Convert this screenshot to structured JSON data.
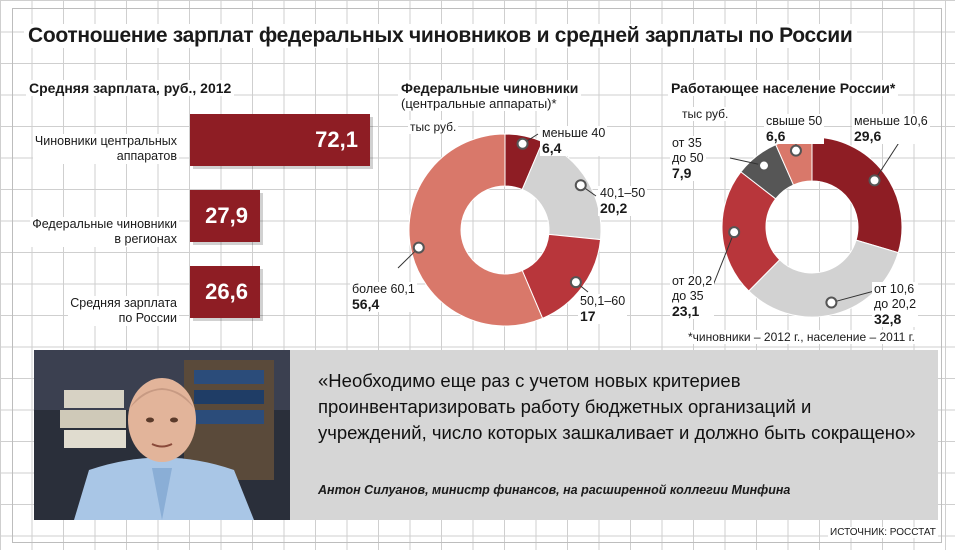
{
  "title": "Соотношение зарплат федеральных чиновников и средней зарплаты по России",
  "bar_section": {
    "title": "Средняя зарплата, руб., 2012",
    "bars": [
      {
        "label_line1": "Чиновники центральных",
        "label_line2": "аппаратов",
        "value_text": "72,1"
      },
      {
        "label_line1": "Федеральные чиновники",
        "label_line2": "в регионах",
        "value_text": "27,9"
      },
      {
        "label_line1": "Средняя зарплата",
        "label_line2": "по России",
        "value_text": "26,6"
      }
    ]
  },
  "donut1": {
    "title": "Федеральные чиновники",
    "subtitle": "(центральные аппараты)*",
    "unit": "тыс руб.",
    "slices": [
      {
        "label": "меньше 40",
        "value_text": "6,4"
      },
      {
        "label": "40,1–50",
        "value_text": "20,2"
      },
      {
        "label": "50,1–60",
        "value_text": "17"
      },
      {
        "label": "более 60,1",
        "value_text": "56,4"
      }
    ]
  },
  "donut2": {
    "title": "Работающее население России*",
    "unit": "тыс руб.",
    "slices": [
      {
        "label": "меньше 10,6",
        "value_text": "29,6"
      },
      {
        "label_line1": "от 10,6",
        "label_line2": "до 20,2",
        "value_text": "32,8"
      },
      {
        "label_line1": "от 20,2",
        "label_line2": "до 35",
        "value_text": "23,1"
      },
      {
        "label_line1": "от 35",
        "label_line2": "до 50",
        "value_text": "7,9"
      },
      {
        "label": "свыше 50",
        "value_text": "6,6"
      }
    ]
  },
  "footnote": "*чиновники – 2012 г., население – 2011 г.",
  "quote": {
    "text": "«Необходимо еще раз с учетом новых критериев проинвентаризировать работу бюджетных организаций и учреждений, число которых зашкаливает и должно быть сокращено»",
    "author": "Антон Силуанов, министр финансов, на расширенной коллегии Минфина"
  },
  "source": "ИСТОЧНИК: РОССТАТ",
  "colors": {
    "dark_red": "#8e1d24",
    "red": "#b8363b",
    "salmon": "#d9786a",
    "light_gray": "#d2d2d2",
    "dark_gray": "#565656"
  },
  "chart_data": [
    {
      "type": "bar",
      "title": "Средняя зарплата, руб., 2012",
      "categories": [
        "Чиновники центральных аппаратов",
        "Федеральные чиновники в регионах",
        "Средняя зарплата по России"
      ],
      "values": [
        72.1,
        27.9,
        26.6
      ],
      "orientation": "horizontal",
      "grid": true
    },
    {
      "type": "pie",
      "title": "Федеральные чиновники (центральные аппараты)*",
      "unit": "тыс руб.",
      "categories": [
        "меньше 40",
        "40,1–50",
        "50,1–60",
        "более 60,1"
      ],
      "values": [
        6.4,
        20.2,
        17,
        56.4
      ],
      "colors": [
        "#8e1d24",
        "#d2d2d2",
        "#b8363b",
        "#d9786a"
      ],
      "donut": true
    },
    {
      "type": "pie",
      "title": "Работающее население России*",
      "unit": "тыс руб.",
      "categories": [
        "меньше 10,6",
        "от 10,6 до 20,2",
        "от 20,2 до 35",
        "от 35 до 50",
        "свыше 50"
      ],
      "values": [
        29.6,
        32.8,
        23.1,
        7.9,
        6.6
      ],
      "colors": [
        "#8e1d24",
        "#d2d2d2",
        "#b8363b",
        "#565656",
        "#d9786a"
      ],
      "donut": true
    }
  ]
}
